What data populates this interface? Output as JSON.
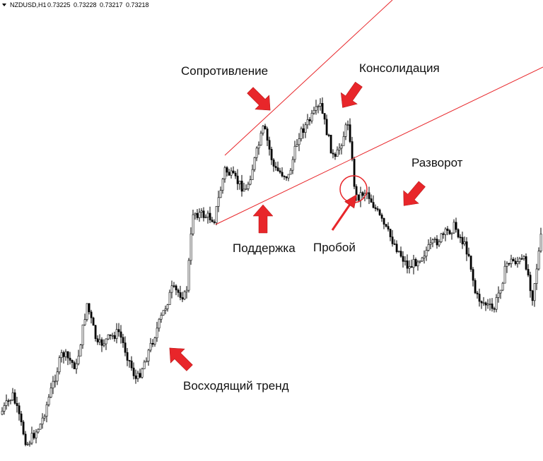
{
  "header": {
    "symbol": "NZDUSD,H1",
    "quotes": [
      0.73225,
      0.73228,
      0.73217,
      0.73218
    ]
  },
  "labels": {
    "resistance": "Сопротивление",
    "consolidation": "Консолидация",
    "reversal": "Разворот",
    "support": "Поддержка",
    "breakout": "Пробой",
    "uptrend": "Восходящий тренд"
  }
}
